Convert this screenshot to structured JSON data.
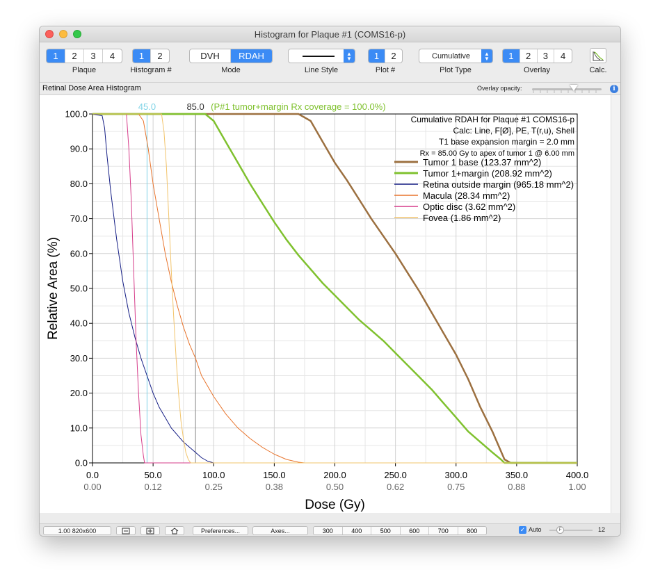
{
  "window": {
    "title": "Histogram for Plaque #1 (COMS16-p)"
  },
  "toolbar": {
    "plaque": {
      "label": "Plaque",
      "options": [
        "1",
        "2",
        "3",
        "4"
      ],
      "selected": 0
    },
    "histogram": {
      "label": "Histogram #",
      "options": [
        "1",
        "2"
      ],
      "selected": 0
    },
    "mode": {
      "label": "Mode",
      "options": [
        "DVH",
        "RDAH"
      ],
      "selected": 1
    },
    "line_style": {
      "label": "Line Style"
    },
    "plot": {
      "label": "Plot #",
      "options": [
        "1",
        "2"
      ],
      "selected": 0
    },
    "plot_type": {
      "label": "Plot Type",
      "value": "Cumulative"
    },
    "overlay": {
      "label": "Overlay",
      "options": [
        "1",
        "2",
        "3",
        "4"
      ],
      "selected": 0
    },
    "calc": {
      "label": "Calc."
    }
  },
  "subbar": {
    "title": "Retinal Dose Area Histogram",
    "opacity_label": "Overlay opacity:",
    "info_icon": "info-icon"
  },
  "bottom": {
    "zoom": "1.00 820x600",
    "preferences": "Preferences...",
    "axes": "Axes...",
    "sizes": [
      "300",
      "400",
      "500",
      "600",
      "700",
      "800"
    ],
    "auto_label": "Auto",
    "font_size": "12",
    "icons": [
      "zoom-out-icon",
      "zoom-in-icon",
      "home-icon"
    ]
  },
  "colors": {
    "accent": "#3b8bf5",
    "tumor_base": "#9c7040",
    "tumor_margin": "#7fc12e",
    "retina": "#141d84",
    "macula": "#e8742c",
    "optic_disc": "#d63c8a",
    "fovea": "#f2c46b",
    "marker45": "#7fd3e6"
  },
  "chart_data": {
    "type": "line",
    "title": "Cumulative RDAH for Plaque #1 COMS16-p",
    "info_lines": [
      "Cumulative RDAH for Plaque #1 COMS16-p",
      "Calc: Line, F[Ø], PE, T(r,u), Shell",
      "T1  base expansion margin = 2.0 mm",
      "Rx = 85.00 Gy to apex of tumor 1 @ 6.00 mm"
    ],
    "xlabel": "Dose (Gy)",
    "ylabel": "Relative Area (%)",
    "xlim": [
      0,
      400
    ],
    "ylim": [
      0,
      100
    ],
    "x_ticks": [
      "0.0",
      "50.0",
      "100.0",
      "150.0",
      "200.0",
      "250.0",
      "300.0",
      "350.0",
      "400.0"
    ],
    "x_ticks_secondary": [
      "0.00",
      "0.12",
      "0.25",
      "0.38",
      "0.50",
      "0.62",
      "0.75",
      "0.88",
      "1.00"
    ],
    "y_ticks": [
      "0.0",
      "10.0",
      "20.0",
      "30.0",
      "40.0",
      "50.0",
      "60.0",
      "70.0",
      "80.0",
      "90.0",
      "100.0"
    ],
    "grid": true,
    "legend_position": "top-right",
    "markers": [
      {
        "x": 45,
        "label": "45.0",
        "color": "#7fd3e6"
      },
      {
        "x": 85,
        "label": "85.0",
        "note": "(P#1 tumor+margin Rx coverage = 100.0%)",
        "color": "#888888",
        "note_color": "#7fc12e"
      }
    ],
    "series": [
      {
        "name": "Tumor 1 base (123.37 mm^2)",
        "color": "#9c7040",
        "width": 2.5,
        "points": [
          [
            0,
            100
          ],
          [
            170,
            100
          ],
          [
            180,
            98
          ],
          [
            190,
            92
          ],
          [
            200,
            86
          ],
          [
            210,
            81
          ],
          [
            220,
            75.5
          ],
          [
            230,
            70
          ],
          [
            240,
            65
          ],
          [
            250,
            60
          ],
          [
            260,
            54.5
          ],
          [
            270,
            49
          ],
          [
            280,
            43
          ],
          [
            290,
            37
          ],
          [
            300,
            31
          ],
          [
            310,
            24
          ],
          [
            320,
            16
          ],
          [
            330,
            9
          ],
          [
            340,
            1
          ],
          [
            345,
            0
          ],
          [
            400,
            0
          ]
        ]
      },
      {
        "name": "Tumor 1+margin (208.92 mm^2)",
        "color": "#7fc12e",
        "width": 2.5,
        "points": [
          [
            0,
            100
          ],
          [
            93,
            100
          ],
          [
            100,
            98
          ],
          [
            110,
            92
          ],
          [
            120,
            86
          ],
          [
            130,
            80
          ],
          [
            140,
            74.5
          ],
          [
            150,
            69
          ],
          [
            160,
            64
          ],
          [
            170,
            59.5
          ],
          [
            180,
            55.5
          ],
          [
            190,
            51.5
          ],
          [
            200,
            48
          ],
          [
            210,
            44.5
          ],
          [
            220,
            41
          ],
          [
            230,
            38
          ],
          [
            240,
            35
          ],
          [
            250,
            31.5
          ],
          [
            260,
            28
          ],
          [
            270,
            24.5
          ],
          [
            280,
            21
          ],
          [
            290,
            17
          ],
          [
            300,
            13
          ],
          [
            310,
            9
          ],
          [
            320,
            6
          ],
          [
            330,
            3
          ],
          [
            337,
            1
          ],
          [
            340,
            0
          ],
          [
            400,
            0
          ]
        ]
      },
      {
        "name": "Retina outside margin (965.18 mm^2)",
        "color": "#141d84",
        "width": 1,
        "points": [
          [
            0,
            100
          ],
          [
            8,
            99.5
          ],
          [
            10,
            96
          ],
          [
            12,
            88
          ],
          [
            15,
            78
          ],
          [
            20,
            64
          ],
          [
            25,
            52
          ],
          [
            30,
            43
          ],
          [
            35,
            36
          ],
          [
            40,
            30
          ],
          [
            45,
            25
          ],
          [
            50,
            20
          ],
          [
            55,
            16
          ],
          [
            60,
            13
          ],
          [
            65,
            10
          ],
          [
            70,
            8
          ],
          [
            75,
            6
          ],
          [
            80,
            4.5
          ],
          [
            85,
            3
          ],
          [
            90,
            1.5
          ],
          [
            95,
            0.5
          ],
          [
            100,
            0
          ],
          [
            400,
            0
          ]
        ]
      },
      {
        "name": "Macula (28.34 mm^2)",
        "color": "#e8742c",
        "width": 1,
        "points": [
          [
            0,
            100
          ],
          [
            38,
            100
          ],
          [
            42,
            98
          ],
          [
            46,
            90
          ],
          [
            50,
            80
          ],
          [
            55,
            70
          ],
          [
            60,
            60
          ],
          [
            65,
            52
          ],
          [
            70,
            45
          ],
          [
            75,
            39
          ],
          [
            80,
            34
          ],
          [
            85,
            30
          ],
          [
            90,
            25
          ],
          [
            100,
            19
          ],
          [
            110,
            14
          ],
          [
            120,
            10
          ],
          [
            130,
            7
          ],
          [
            140,
            4.5
          ],
          [
            150,
            2.5
          ],
          [
            160,
            1
          ],
          [
            170,
            0.2
          ],
          [
            175,
            0
          ],
          [
            400,
            0
          ]
        ]
      },
      {
        "name": "Optic disc (3.62 mm^2)",
        "color": "#d63c8a",
        "width": 1,
        "points": [
          [
            0,
            100
          ],
          [
            28,
            100
          ],
          [
            30,
            90
          ],
          [
            32,
            75
          ],
          [
            34,
            55
          ],
          [
            36,
            35
          ],
          [
            38,
            20
          ],
          [
            40,
            8
          ],
          [
            42,
            2
          ],
          [
            43,
            0
          ],
          [
            400,
            0
          ]
        ]
      },
      {
        "name": "Fovea (1.86 mm^2)",
        "color": "#f2c46b",
        "width": 1,
        "points": [
          [
            0,
            100
          ],
          [
            57,
            100
          ],
          [
            59,
            95
          ],
          [
            61,
            85
          ],
          [
            63,
            70
          ],
          [
            65,
            55
          ],
          [
            67,
            42
          ],
          [
            69,
            30
          ],
          [
            71,
            20
          ],
          [
            73,
            12
          ],
          [
            75,
            7
          ],
          [
            77,
            3
          ],
          [
            79,
            1
          ],
          [
            81,
            0
          ],
          [
            400,
            0
          ]
        ]
      }
    ]
  }
}
